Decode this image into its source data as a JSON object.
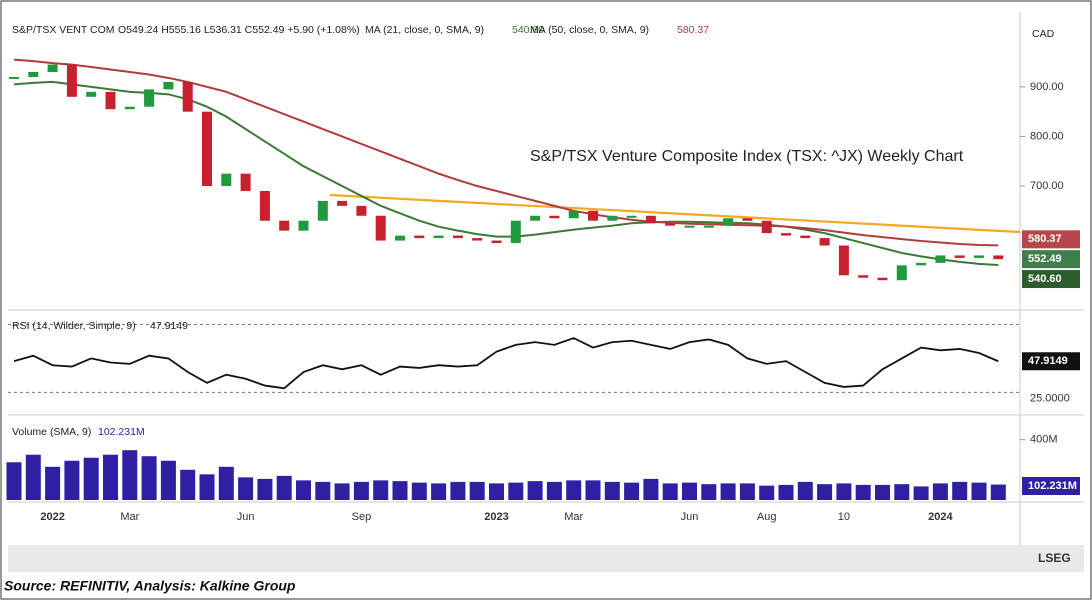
{
  "header": {
    "symbol": "S&P/TSX VENT COM",
    "ohlc": "O549.24 H555.16 L536.31 C552.49 +5.90 (+1.08%)",
    "currency": "CAD"
  },
  "chart_data": [
    {
      "type": "candlestick",
      "title": "S&P/TSX Venture Composite Index (TSX: ^JX) Weekly Chart",
      "categories": [
        null,
        null,
        "2022",
        null,
        null,
        null,
        "Mar",
        null,
        null,
        null,
        null,
        null,
        "Jun",
        null,
        null,
        null,
        null,
        null,
        "Sep",
        null,
        null,
        null,
        null,
        null,
        null,
        "2023",
        null,
        null,
        null,
        "Mar",
        null,
        null,
        null,
        null,
        null,
        "Jun",
        null,
        null,
        null,
        "Aug",
        null,
        null,
        null,
        "10",
        null,
        null,
        null,
        null,
        "2024",
        null,
        null,
        null
      ],
      "close": [
        920,
        930,
        945,
        880,
        890,
        855,
        860,
        895,
        910,
        850,
        700,
        725,
        690,
        630,
        610,
        630,
        670,
        660,
        640,
        590,
        600,
        595,
        600,
        595,
        590,
        585,
        630,
        640,
        635,
        650,
        630,
        640,
        640,
        625,
        620,
        620,
        620,
        635,
        630,
        605,
        600,
        595,
        580,
        520,
        515,
        510,
        540,
        545,
        560,
        555,
        560,
        552.49
      ],
      "up_color": "#1f9a3c",
      "down_color": "#c8202e",
      "series": [
        {
          "name": "MA (21, close, 0, SMA, 9)",
          "legend_value": {
            "value": 540.6,
            "label": "540.60"
          },
          "color": "#3b7a35",
          "values": [
            905,
            908,
            910,
            905,
            900,
            895,
            890,
            888,
            885,
            875,
            860,
            840,
            815,
            790,
            765,
            740,
            720,
            700,
            680,
            660,
            645,
            630,
            618,
            610,
            603,
            598,
            598,
            602,
            607,
            612,
            616,
            620,
            625,
            627,
            628,
            628,
            627,
            626,
            625,
            622,
            618,
            612,
            605,
            595,
            585,
            575,
            565,
            558,
            552,
            547,
            543,
            540.6
          ]
        },
        {
          "name": "MA (50, close, 0, SMA, 9)",
          "legend_value": 580.37,
          "color": "#b23b3e",
          "values": [
            955,
            952,
            948,
            945,
            940,
            935,
            930,
            925,
            918,
            910,
            900,
            890,
            875,
            860,
            845,
            830,
            815,
            800,
            785,
            770,
            755,
            740,
            725,
            712,
            700,
            690,
            680,
            670,
            660,
            650,
            643,
            637,
            632,
            628,
            626,
            624,
            623,
            622,
            621,
            620,
            618,
            615,
            611,
            606,
            601,
            597,
            593,
            589,
            586,
            583,
            581,
            580.37
          ]
        }
      ],
      "ylim": [
        460,
        1045
      ],
      "yticks": [
        {
          "value": 700,
          "label": "700.00"
        },
        {
          "value": 800,
          "label": "800.00"
        },
        {
          "value": 900,
          "label": "900.00"
        }
      ]
    },
    {
      "type": "line",
      "title": "RSI (14, Wilder, Simple, 9)",
      "legend_value": 47.9149,
      "color": "#111111",
      "values": [
        48,
        52,
        45,
        44,
        50,
        47,
        46,
        52,
        50,
        40,
        32,
        38,
        35,
        30,
        28,
        40,
        45,
        42,
        45,
        38,
        44,
        43,
        45,
        44,
        45,
        55,
        60,
        62,
        60,
        65,
        58,
        62,
        63,
        60,
        57,
        62,
        64,
        60,
        50,
        46,
        48,
        40,
        32,
        29,
        30,
        42,
        50,
        58,
        56,
        57,
        54,
        47.9149
      ],
      "bands": [
        25,
        75
      ],
      "ylim": [
        12,
        82
      ],
      "yticks": [
        {
          "value": 25,
          "label": "25.0000"
        }
      ]
    },
    {
      "type": "bar",
      "title": "Volume (SMA, 9)",
      "legend_value": {
        "value": 102.231,
        "label": "102.231M"
      },
      "color": "#2f1fa3",
      "values": [
        250,
        300,
        220,
        260,
        280,
        300,
        330,
        290,
        260,
        200,
        170,
        220,
        150,
        140,
        160,
        130,
        120,
        110,
        120,
        130,
        125,
        115,
        110,
        120,
        120,
        110,
        115,
        125,
        120,
        130,
        130,
        120,
        115,
        140,
        110,
        115,
        105,
        110,
        110,
        95,
        100,
        120,
        105,
        110,
        100,
        100,
        105,
        90,
        110,
        120,
        115,
        102.231
      ],
      "ylim": [
        0,
        530
      ],
      "yticks": [
        {
          "value": 400,
          "label": "400M"
        }
      ]
    }
  ],
  "footer": {
    "brand": "LSEG",
    "source": "Source: REFINITIV, Analysis: Kalkine Group"
  }
}
